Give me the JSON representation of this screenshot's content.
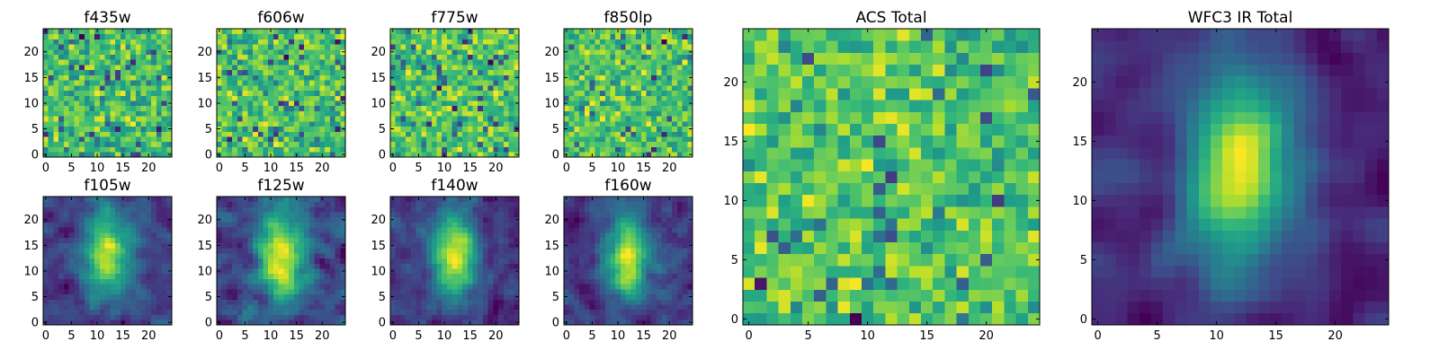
{
  "chart_data": [
    {
      "type": "heatmap",
      "title": "f435w",
      "kind": "noise",
      "seed": 11,
      "smooth": 0,
      "x_ticks": [
        "0",
        "5",
        "10",
        "15",
        "20"
      ],
      "y_ticks": [
        "0",
        "5",
        "10",
        "15",
        "20"
      ],
      "xlim": [
        0,
        24
      ],
      "ylim": [
        0,
        24
      ],
      "colormap": "viridis"
    },
    {
      "type": "heatmap",
      "title": "f606w",
      "kind": "noise",
      "seed": 23,
      "smooth": 0,
      "x_ticks": [
        "0",
        "5",
        "10",
        "15",
        "20"
      ],
      "y_ticks": [
        "0",
        "5",
        "10",
        "15",
        "20"
      ],
      "xlim": [
        0,
        24
      ],
      "ylim": [
        0,
        24
      ],
      "colormap": "viridis"
    },
    {
      "type": "heatmap",
      "title": "f775w",
      "kind": "noise",
      "seed": 37,
      "smooth": 0,
      "x_ticks": [
        "0",
        "5",
        "10",
        "15",
        "20"
      ],
      "y_ticks": [
        "0",
        "5",
        "10",
        "15",
        "20"
      ],
      "xlim": [
        0,
        24
      ],
      "ylim": [
        0,
        24
      ],
      "colormap": "viridis"
    },
    {
      "type": "heatmap",
      "title": "f850lp",
      "kind": "noise",
      "seed": 41,
      "smooth": 0,
      "x_ticks": [
        "0",
        "5",
        "10",
        "15",
        "20"
      ],
      "y_ticks": [
        "0",
        "5",
        "10",
        "15",
        "20"
      ],
      "xlim": [
        0,
        24
      ],
      "ylim": [
        0,
        24
      ],
      "colormap": "viridis"
    },
    {
      "type": "heatmap",
      "title": "f105w",
      "kind": "source",
      "seed": 53,
      "smooth": 1,
      "x_ticks": [
        "0",
        "5",
        "10",
        "15",
        "20"
      ],
      "y_ticks": [
        "0",
        "5",
        "10",
        "15",
        "20"
      ],
      "xlim": [
        0,
        24
      ],
      "ylim": [
        0,
        24
      ],
      "colormap": "viridis"
    },
    {
      "type": "heatmap",
      "title": "f125w",
      "kind": "source",
      "seed": 67,
      "smooth": 1,
      "x_ticks": [
        "0",
        "5",
        "10",
        "15",
        "20"
      ],
      "y_ticks": [
        "0",
        "5",
        "10",
        "15",
        "20"
      ],
      "xlim": [
        0,
        24
      ],
      "ylim": [
        0,
        24
      ],
      "colormap": "viridis"
    },
    {
      "type": "heatmap",
      "title": "f140w",
      "kind": "source",
      "seed": 79,
      "smooth": 1,
      "x_ticks": [
        "0",
        "5",
        "10",
        "15",
        "20"
      ],
      "y_ticks": [
        "0",
        "5",
        "10",
        "15",
        "20"
      ],
      "xlim": [
        0,
        24
      ],
      "ylim": [
        0,
        24
      ],
      "colormap": "viridis"
    },
    {
      "type": "heatmap",
      "title": "f160w",
      "kind": "source",
      "seed": 83,
      "smooth": 1,
      "x_ticks": [
        "0",
        "5",
        "10",
        "15",
        "20"
      ],
      "y_ticks": [
        "0",
        "5",
        "10",
        "15",
        "20"
      ],
      "xlim": [
        0,
        24
      ],
      "ylim": [
        0,
        24
      ],
      "colormap": "viridis"
    },
    {
      "type": "heatmap",
      "title": "ACS Total",
      "kind": "noise",
      "seed": 97,
      "smooth": 0,
      "x_ticks": [
        "0",
        "5",
        "10",
        "15",
        "20"
      ],
      "y_ticks": [
        "0",
        "5",
        "10",
        "15",
        "20"
      ],
      "xlim": [
        0,
        24
      ],
      "ylim": [
        0,
        24
      ],
      "colormap": "viridis"
    },
    {
      "type": "heatmap",
      "title": "WFC3 IR Total",
      "kind": "source",
      "seed": 101,
      "smooth": 2,
      "x_ticks": [
        "0",
        "5",
        "10",
        "15",
        "20"
      ],
      "y_ticks": [
        "0",
        "5",
        "10",
        "15",
        "20"
      ],
      "xlim": [
        0,
        24
      ],
      "ylim": [
        0,
        24
      ],
      "colormap": "viridis"
    }
  ]
}
